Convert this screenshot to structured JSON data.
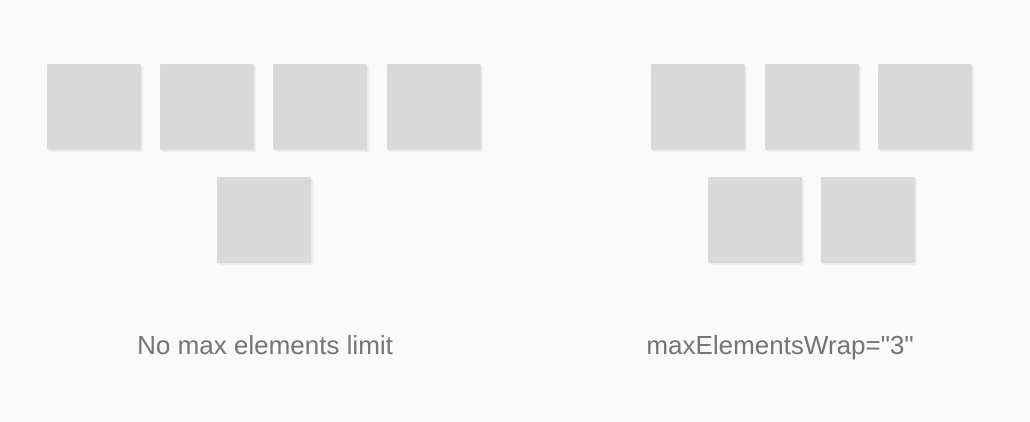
{
  "left_panel": {
    "caption": "No max elements limit",
    "box_count": 5
  },
  "right_panel": {
    "caption": "maxElementsWrap=\"3\"",
    "box_count": 5
  },
  "colors": {
    "background": "#fafafa",
    "box": "#d9d9d9",
    "caption_text": "#757575"
  }
}
